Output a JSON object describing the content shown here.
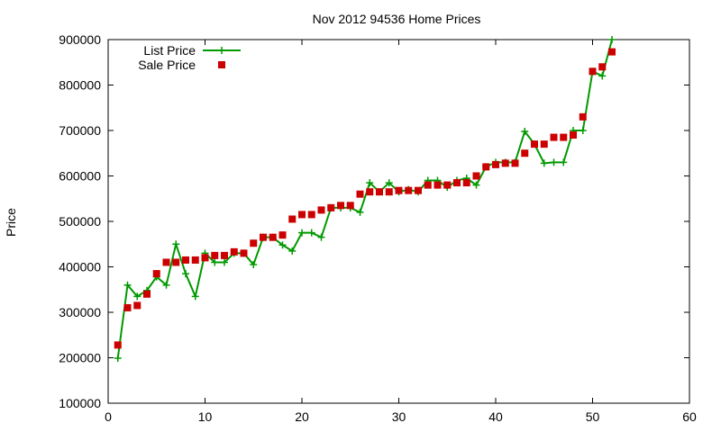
{
  "chart_data": {
    "type": "line",
    "title": "Nov 2012 94536 Home Prices",
    "xlabel": "",
    "ylabel": "Price",
    "xlim": [
      0,
      60
    ],
    "ylim": [
      100000,
      900000
    ],
    "xticks": [
      0,
      10,
      20,
      30,
      40,
      50,
      60
    ],
    "yticks": [
      100000,
      200000,
      300000,
      400000,
      500000,
      600000,
      700000,
      800000,
      900000
    ],
    "grid": false,
    "legend_position": "top-left",
    "series": [
      {
        "name": "List Price",
        "style": "line+cross",
        "color": "#009900",
        "x": [
          1,
          2,
          3,
          4,
          5,
          6,
          7,
          8,
          9,
          10,
          11,
          12,
          13,
          14,
          15,
          16,
          17,
          18,
          19,
          20,
          21,
          22,
          23,
          24,
          25,
          26,
          27,
          28,
          29,
          30,
          31,
          32,
          33,
          34,
          35,
          36,
          37,
          38,
          39,
          40,
          41,
          42,
          43,
          44,
          45,
          46,
          47,
          48,
          49,
          50,
          51,
          52
        ],
        "y": [
          199000,
          360000,
          335000,
          348000,
          378000,
          360000,
          450000,
          385000,
          335000,
          430000,
          410000,
          410000,
          430000,
          430000,
          405000,
          465000,
          465000,
          448000,
          435000,
          475000,
          475000,
          465000,
          530000,
          530000,
          530000,
          520000,
          585000,
          565000,
          585000,
          565000,
          570000,
          565000,
          590000,
          590000,
          575000,
          590000,
          595000,
          580000,
          620000,
          630000,
          630000,
          630000,
          698000,
          670000,
          628000,
          630000,
          630000,
          700000,
          700000,
          830000,
          820000,
          900000
        ]
      },
      {
        "name": "Sale Price",
        "style": "squares",
        "color": "#cc0000",
        "x": [
          1,
          2,
          3,
          4,
          5,
          6,
          7,
          8,
          9,
          10,
          11,
          12,
          13,
          14,
          15,
          16,
          17,
          18,
          19,
          20,
          21,
          22,
          23,
          24,
          25,
          26,
          27,
          28,
          29,
          30,
          31,
          32,
          33,
          34,
          35,
          36,
          37,
          38,
          39,
          40,
          41,
          42,
          43,
          44,
          45,
          46,
          47,
          48,
          49,
          50,
          51,
          52
        ],
        "y": [
          228000,
          310000,
          315000,
          340000,
          385000,
          410000,
          410000,
          415000,
          415000,
          420000,
          425000,
          425000,
          433000,
          430000,
          452000,
          465000,
          465000,
          470000,
          505000,
          515000,
          515000,
          525000,
          530000,
          535000,
          535000,
          560000,
          565000,
          565000,
          565000,
          568000,
          568000,
          568000,
          580000,
          580000,
          580000,
          585000,
          585000,
          600000,
          620000,
          625000,
          628000,
          628000,
          650000,
          670000,
          670000,
          685000,
          685000,
          690000,
          730000,
          830000,
          840000,
          873000
        ]
      }
    ]
  }
}
